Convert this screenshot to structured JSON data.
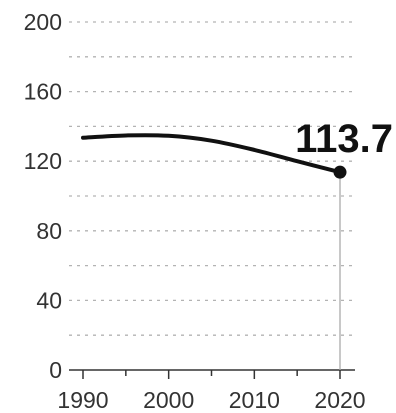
{
  "chart_data": {
    "type": "line",
    "title": "",
    "xlabel": "",
    "ylabel": "",
    "x": [
      1990,
      1995,
      2000,
      2005,
      2010,
      2015,
      2020
    ],
    "series": [
      {
        "values": [
          133.5,
          134.8,
          134.6,
          131.8,
          126.5,
          120.0,
          113.7
        ]
      }
    ],
    "ylim": [
      0,
      200
    ],
    "xlim": [
      1990,
      2020
    ],
    "y_ticks": [
      "0",
      "40",
      "80",
      "120",
      "160",
      "200"
    ],
    "x_ticks": [
      "1990",
      "2000",
      "2010",
      "2020"
    ],
    "grid": "horizontal dotted",
    "callout": {
      "text": "113.7",
      "x": 2020,
      "y": 113.7
    },
    "colors": {
      "line": "#111111",
      "grid": "#b3b3b3",
      "text": "#333333"
    }
  }
}
